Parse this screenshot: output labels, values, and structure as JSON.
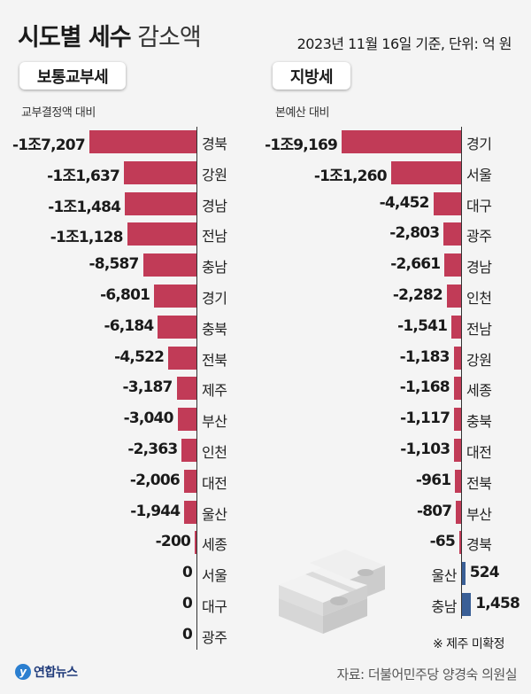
{
  "header": {
    "title_bold": "시도별 세수",
    "title_light": "감소액",
    "subtitle": "2023년 11월 16일 기준, 단위: 억 원"
  },
  "panels": {
    "left": {
      "label": "보통교부세",
      "basis": "교부결정액 대비"
    },
    "right": {
      "label": "지방세",
      "basis": "본예산 대비"
    }
  },
  "note": "※ 제주 미확정",
  "source": "자료: 더불어민주당 양경숙 의원실",
  "logo": {
    "mark": "y",
    "text": "연합뉴스"
  },
  "colors": {
    "negative": "#c13b57",
    "positive": "#3a5f96",
    "background": "#f4f4f4"
  },
  "chart_data": [
    {
      "type": "bar",
      "orientation": "horizontal",
      "title": "보통교부세",
      "subtitle": "교부결정액 대비",
      "unit": "억 원",
      "categories": [
        "경북",
        "강원",
        "경남",
        "전남",
        "충남",
        "경기",
        "충북",
        "전북",
        "제주",
        "부산",
        "인천",
        "대전",
        "울산",
        "세종",
        "서울",
        "대구",
        "광주"
      ],
      "values": [
        -17207,
        -11637,
        -11484,
        -11128,
        -8587,
        -6801,
        -6184,
        -4522,
        -3187,
        -3040,
        -2363,
        -2006,
        -1944,
        -200,
        0,
        0,
        0
      ],
      "labels": [
        "-1조7,207",
        "-1조1,637",
        "-1조1,484",
        "-1조1,128",
        "-8,587",
        "-6,801",
        "-6,184",
        "-4,522",
        "-3,187",
        "-3,040",
        "-2,363",
        "-2,006",
        "-1,944",
        "-200",
        "0",
        "0",
        "0"
      ]
    },
    {
      "type": "bar",
      "orientation": "horizontal",
      "title": "지방세",
      "subtitle": "본예산 대비",
      "unit": "억 원",
      "categories": [
        "경기",
        "서울",
        "대구",
        "광주",
        "경남",
        "인천",
        "전남",
        "강원",
        "세종",
        "충북",
        "대전",
        "전북",
        "부산",
        "경북",
        "울산",
        "충남"
      ],
      "values": [
        -19169,
        -11260,
        -4452,
        -2803,
        -2661,
        -2282,
        -1541,
        -1183,
        -1168,
        -1117,
        -1103,
        -961,
        -807,
        -65,
        524,
        1458
      ],
      "labels": [
        "-1조9,169",
        "-1조1,260",
        "-4,452",
        "-2,803",
        "-2,661",
        "-2,282",
        "-1,541",
        "-1,183",
        "-1,168",
        "-1,117",
        "-1,103",
        "-961",
        "-807",
        "-65",
        "524",
        "1,458"
      ],
      "footnote": "※ 제주 미확정"
    }
  ]
}
